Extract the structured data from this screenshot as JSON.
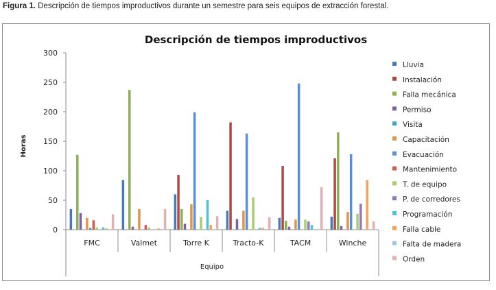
{
  "caption": {
    "label": "Figura 1.",
    "text": " Descripción de tiempos improductivos durante un semestre para seis equipos de extracción forestal."
  },
  "chart_data": {
    "type": "bar",
    "title": "Descripción de tiempos improductivos",
    "xlabel": "Equipo",
    "ylabel": "Horas",
    "ylim": [
      0,
      300
    ],
    "yticks": [
      "0",
      "50",
      "100",
      "150",
      "200",
      "250",
      "300"
    ],
    "grid": false,
    "legend_position": "right",
    "categories": [
      "FMC",
      "Valmet",
      "Torre K",
      "Tracto-K",
      "TACM",
      "Winche"
    ],
    "series": [
      {
        "name": "Lluvia",
        "color": "#4a7ab5",
        "values": [
          35,
          84,
          60,
          32,
          20,
          22
        ]
      },
      {
        "name": "Instalación",
        "color": "#b04a48",
        "values": [
          0,
          0,
          93,
          182,
          108,
          121
        ]
      },
      {
        "name": "Falla mecánica",
        "color": "#8eb055",
        "values": [
          127,
          237,
          35,
          0,
          15,
          165
        ]
      },
      {
        "name": "Permiso",
        "color": "#7a63a0",
        "values": [
          28,
          5,
          10,
          18,
          5,
          6
        ]
      },
      {
        "name": "Visita",
        "color": "#45a6c2",
        "values": [
          0,
          0,
          0,
          0,
          0,
          0
        ]
      },
      {
        "name": "Capacitación",
        "color": "#e0954a",
        "values": [
          20,
          35,
          43,
          32,
          17,
          30
        ]
      },
      {
        "name": "Evacuación",
        "color": "#5b8fd1",
        "values": [
          3,
          0,
          199,
          163,
          248,
          128
        ]
      },
      {
        "name": "Mantenimiento",
        "color": "#d45a55",
        "values": [
          16,
          8,
          0,
          0,
          0,
          0
        ]
      },
      {
        "name": "T. de equipo",
        "color": "#a9cc6e",
        "values": [
          4,
          4,
          21,
          55,
          17,
          27
        ]
      },
      {
        "name": "P. de corredores",
        "color": "#9179b8",
        "values": [
          0,
          0,
          0,
          0,
          14,
          44
        ]
      },
      {
        "name": "Programación",
        "color": "#4fc1d8",
        "values": [
          4,
          0,
          50,
          3,
          8,
          0
        ]
      },
      {
        "name": "Falla cable",
        "color": "#f5a25a",
        "values": [
          2,
          2,
          8,
          3,
          0,
          84
        ]
      },
      {
        "name": "Falta de madera",
        "color": "#a9c0e3",
        "values": [
          0,
          1,
          0,
          0,
          0,
          0
        ]
      },
      {
        "name": "Orden",
        "color": "#e2b0b0",
        "values": [
          26,
          35,
          23,
          21,
          72,
          14
        ]
      }
    ]
  }
}
